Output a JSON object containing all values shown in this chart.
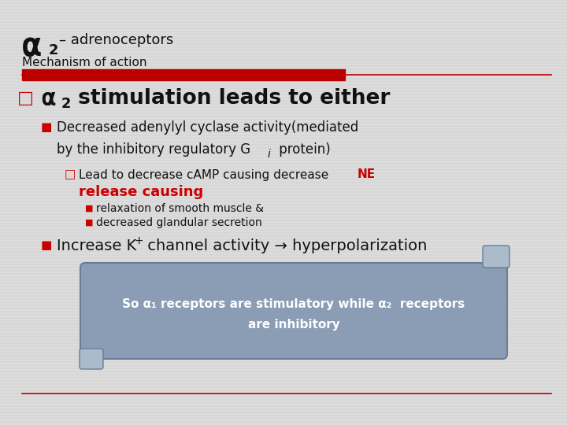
{
  "bg_color": "#dcdcdc",
  "bar_color": "#bb0000",
  "text_color": "#111111",
  "red_color": "#cc0000",
  "scroll_bg": "#8a9db5",
  "scroll_edge": "#6a7d95",
  "scroll_curl": "#aabccc",
  "scroll_text": "#ffffff",
  "title_alpha": "α",
  "title_sub2": "2",
  "title_dash": "– adrenoceptors",
  "subtitle": "Mechanism of action",
  "heading_bullet": "□",
  "heading_alpha": "α",
  "heading_sub2": "2",
  "heading_rest": " stimulation leads to either",
  "bullet1_line1": "Decreased adenylyl cyclase activity(mediated",
  "bullet1_line2a": "by the inhibitory regulatory G",
  "bullet1_line2b": "i",
  "bullet1_line2c": " protein)",
  "subbullet_line1a": "Lead to decrease cAMP causing decrease ",
  "subbullet_NE": "NE",
  "subbullet_line2": "release causing",
  "sub1": "relaxation of smooth muscle &",
  "sub2": "decreased glandular secretion",
  "bullet2a": "Increase K",
  "bullet2b": "+",
  "bullet2c": " channel activity → hyperpolarization",
  "scroll_text1a": "So α",
  "scroll_text1b": "1",
  "scroll_text1c": " receptors are stimulatory while α",
  "scroll_text1d": "2",
  "scroll_text1e": "  receptors",
  "scroll_text2": "are inhibitory"
}
